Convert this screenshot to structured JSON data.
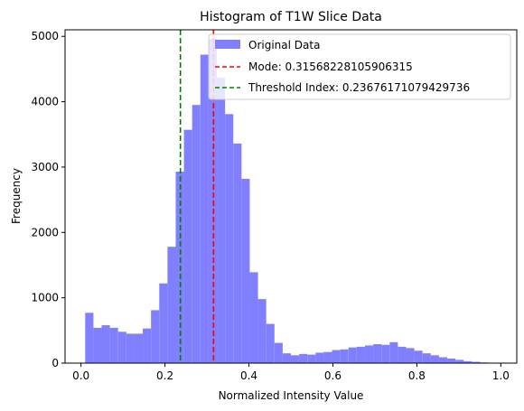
{
  "chart_data": {
    "type": "bar",
    "title": "Histogram of T1W Slice Data",
    "xlabel": "Normalized Intensity Value",
    "ylabel": "Frequency",
    "xlim": [
      -0.038,
      1.038
    ],
    "ylim": [
      0,
      5100
    ],
    "xticks": [
      0.0,
      0.2,
      0.4,
      0.6,
      0.8,
      1.0
    ],
    "xtick_labels": [
      "0.0",
      "0.2",
      "0.4",
      "0.6",
      "0.8",
      "1.0"
    ],
    "yticks": [
      0,
      1000,
      2000,
      3000,
      4000,
      5000
    ],
    "ytick_labels": [
      "0",
      "1000",
      "2000",
      "3000",
      "4000",
      "5000"
    ],
    "grid": false,
    "legend_position": "top-right",
    "series": [
      {
        "name": "Original Data",
        "color": "#8080ff",
        "bin_width": 0.0196,
        "bin_starts": [
          0.01,
          0.0296,
          0.0492,
          0.0688,
          0.0884,
          0.108,
          0.1276,
          0.1472,
          0.1668,
          0.1864,
          0.206,
          0.2256,
          0.2452,
          0.2648,
          0.2844,
          0.304,
          0.3236,
          0.3432,
          0.3628,
          0.3824,
          0.402,
          0.4216,
          0.4412,
          0.4608,
          0.4804,
          0.5,
          0.5196,
          0.5392,
          0.5588,
          0.5784,
          0.598,
          0.6176,
          0.6372,
          0.6568,
          0.6764,
          0.696,
          0.7156,
          0.7352,
          0.7548,
          0.7744,
          0.794,
          0.8136,
          0.8332,
          0.8528,
          0.8724,
          0.892,
          0.9116,
          0.9312,
          0.9508,
          0.9704
        ],
        "values": [
          770,
          540,
          580,
          540,
          480,
          450,
          450,
          530,
          810,
          1220,
          1780,
          2930,
          3570,
          3950,
          4720,
          4960,
          4370,
          3810,
          3360,
          2820,
          1390,
          980,
          600,
          310,
          150,
          120,
          140,
          130,
          160,
          170,
          200,
          210,
          240,
          250,
          270,
          290,
          280,
          320,
          250,
          230,
          190,
          150,
          120,
          90,
          70,
          50,
          30,
          20,
          10,
          5
        ]
      }
    ],
    "vlines": [
      {
        "name": "Mode: 0.31568228105906315",
        "x": 0.31568228105906315,
        "color": "#ff0000",
        "style": "dashed"
      },
      {
        "name": "Threshold Index: 0.23676171079429736",
        "x": 0.23676171079429736,
        "color": "#008000",
        "style": "dashed"
      }
    ]
  }
}
